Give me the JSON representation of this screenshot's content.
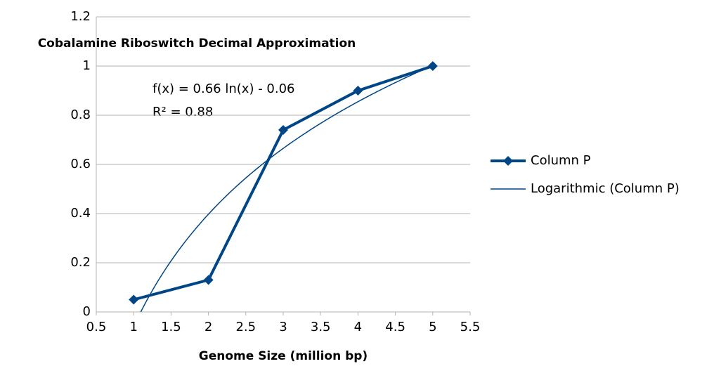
{
  "chart_data": {
    "type": "line",
    "y_label": "Cobalamine Riboswitch Decimal Approximation",
    "x_label": "Genome Size (million bp)",
    "x": [
      1,
      2,
      3,
      4,
      5
    ],
    "series": [
      {
        "name": "Column P",
        "color": "#004586",
        "values": [
          0.05,
          0.13,
          0.74,
          0.9,
          1.0
        ]
      }
    ],
    "trendline": {
      "name": "Logarithmic (Column P)",
      "a": 0.66,
      "b": -0.06,
      "equation": "f(x) = 0.66 ln(x) - 0.06",
      "r2_label": "R² = 0.88"
    },
    "xlim": [
      0.5,
      5.5
    ],
    "xticks": [
      0.5,
      1,
      1.5,
      2,
      2.5,
      3,
      3.5,
      4,
      4.5,
      5,
      5.5
    ],
    "ylim": [
      0,
      1.2
    ],
    "yticks": [
      0,
      0.2,
      0.4,
      0.6,
      0.8,
      1,
      1.2
    ],
    "grid": true,
    "legend": "right"
  }
}
